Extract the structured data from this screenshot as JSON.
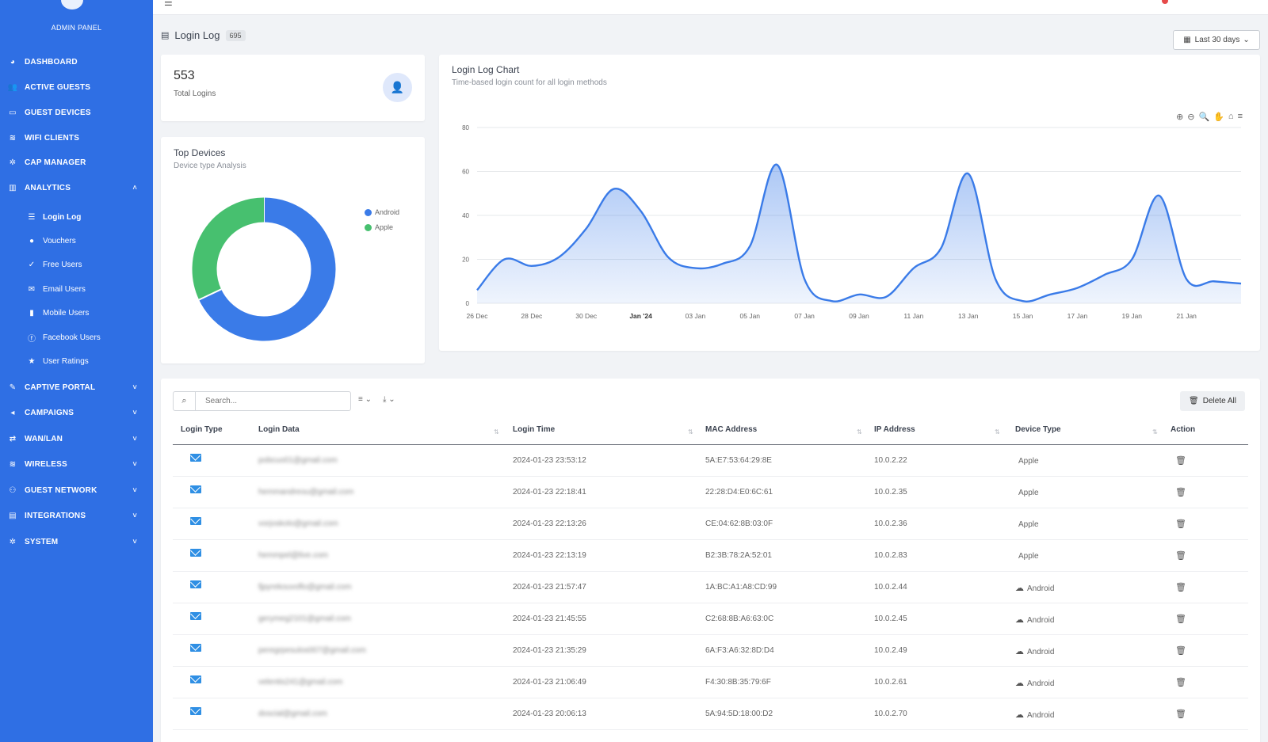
{
  "sidebar": {
    "panel_label": "ADMIN PANEL",
    "items": [
      {
        "label": "DASHBOARD",
        "icon": "dashboard-icon",
        "glyph": "◕"
      },
      {
        "label": "ACTIVE GUESTS",
        "icon": "users-icon",
        "glyph": "👥"
      },
      {
        "label": "GUEST DEVICES",
        "icon": "laptop-icon",
        "glyph": "▭"
      },
      {
        "label": "WIFI CLIENTS",
        "icon": "wifi-icon",
        "glyph": "≋"
      },
      {
        "label": "CAP MANAGER",
        "icon": "gear-icon",
        "glyph": "✲"
      },
      {
        "label": "ANALYTICS",
        "icon": "chart-icon",
        "glyph": "▥",
        "chevron": "˄"
      }
    ],
    "analytics_sub": [
      {
        "label": "Login Log",
        "icon": "list-icon",
        "glyph": "☰"
      },
      {
        "label": "Vouchers",
        "icon": "user-icon",
        "glyph": "●"
      },
      {
        "label": "Free Users",
        "icon": "check-icon",
        "glyph": "✓"
      },
      {
        "label": "Email Users",
        "icon": "email-icon",
        "glyph": "✉"
      },
      {
        "label": "Mobile Users",
        "icon": "mobile-icon",
        "glyph": "▮"
      },
      {
        "label": "Facebook Users",
        "icon": "facebook-icon",
        "glyph": "ⓕ"
      },
      {
        "label": "User Ratings",
        "icon": "star-icon",
        "glyph": "★"
      }
    ],
    "lower_items": [
      {
        "label": "CAPTIVE PORTAL",
        "icon": "edit-icon",
        "glyph": "✎",
        "chevron": "˅"
      },
      {
        "label": "CAMPAIGNS",
        "icon": "megaphone-icon",
        "glyph": "◂",
        "chevron": "˅"
      },
      {
        "label": "WAN/LAN",
        "icon": "exchange-icon",
        "glyph": "⇄",
        "chevron": "˅"
      },
      {
        "label": "WIRELESS",
        "icon": "wireless-icon",
        "glyph": "≋",
        "chevron": "˅"
      },
      {
        "label": "GUEST NETWORK",
        "icon": "user-network-icon",
        "glyph": "⚇",
        "chevron": "˅"
      },
      {
        "label": "INTEGRATIONS",
        "icon": "integrations-icon",
        "glyph": "▤",
        "chevron": "˅"
      },
      {
        "label": "SYSTEM",
        "icon": "system-gear-icon",
        "glyph": "✲",
        "chevron": "˅"
      }
    ]
  },
  "header": {
    "title": "Login Log",
    "count_badge": "695",
    "range_label": "Last 30 days",
    "range_chevron": "⌄",
    "calendar_glyph": "▦",
    "list_glyph": "▤"
  },
  "stats": {
    "total_value": "553",
    "total_label": "Total Logins",
    "icon_glyph": "👤"
  },
  "devices_card": {
    "title": "Top Devices",
    "subtitle": "Device type Analysis",
    "legend": [
      {
        "name": "Android",
        "color": "#3a7be8",
        "value": 68
      },
      {
        "name": "Apple",
        "color": "#47c06f",
        "value": 32
      }
    ]
  },
  "chart_card": {
    "title": "Login Log Chart",
    "subtitle": "Time-based login count for all login methods",
    "toolbar": [
      {
        "name": "zoom-in-icon",
        "glyph": "⊕"
      },
      {
        "name": "zoom-out-icon",
        "glyph": "⊖"
      },
      {
        "name": "magnify-icon",
        "glyph": "🔍"
      },
      {
        "name": "pan-hand-icon",
        "glyph": "✋"
      },
      {
        "name": "home-icon",
        "glyph": "⌂"
      },
      {
        "name": "menu-icon",
        "glyph": "≡"
      }
    ]
  },
  "chart_data": {
    "type": "area",
    "title": "Login Log Chart",
    "subtitle": "Time-based login count for all login methods",
    "x": [
      "2023-12-26",
      "2023-12-27",
      "2023-12-28",
      "2023-12-29",
      "2023-12-30",
      "2023-12-31",
      "2024-01-01",
      "2024-01-02",
      "2024-01-03",
      "2024-01-04",
      "2024-01-05",
      "2024-01-06",
      "2024-01-07",
      "2024-01-08",
      "2024-01-09",
      "2024-01-10",
      "2024-01-11",
      "2024-01-12",
      "2024-01-13",
      "2024-01-14",
      "2024-01-15",
      "2024-01-16",
      "2024-01-17",
      "2024-01-18",
      "2024-01-19",
      "2024-01-20",
      "2024-01-21",
      "2024-01-22",
      "2024-01-23"
    ],
    "values": [
      6,
      20,
      17,
      21,
      34,
      52,
      42,
      21,
      16,
      18,
      26,
      63,
      11,
      1,
      4,
      3,
      16,
      25,
      59,
      11,
      1,
      4,
      7,
      13,
      20,
      49,
      11,
      10,
      9
    ],
    "ylim": [
      0,
      80
    ],
    "yticks": [
      "0",
      "20",
      "40",
      "60",
      "80"
    ],
    "xticks": [
      {
        "x": "2023-12-26",
        "label": "26 Dec"
      },
      {
        "x": "2023-12-28",
        "label": "28 Dec"
      },
      {
        "x": "2023-12-30",
        "label": "30 Dec"
      },
      {
        "x": "2024-01-01",
        "label": "Jan '24"
      },
      {
        "x": "2024-01-03",
        "label": "03 Jan"
      },
      {
        "x": "2024-01-05",
        "label": "05 Jan"
      },
      {
        "x": "2024-01-07",
        "label": "07 Jan"
      },
      {
        "x": "2024-01-09",
        "label": "09 Jan"
      },
      {
        "x": "2024-01-11",
        "label": "11 Jan"
      },
      {
        "x": "2024-01-13",
        "label": "13 Jan"
      },
      {
        "x": "2024-01-15",
        "label": "15 Jan"
      },
      {
        "x": "2024-01-17",
        "label": "17 Jan"
      },
      {
        "x": "2024-01-19",
        "label": "19 Jan"
      },
      {
        "x": "2024-01-21",
        "label": "21 Jan"
      }
    ],
    "grid": true,
    "color": "#3a7be8"
  },
  "table": {
    "search_placeholder": "Search...",
    "columns_glyph": "≡ ⌄",
    "export_glyph": "⤓ ⌄",
    "delete_all_label": "Delete All",
    "delete_glyph": "🗑",
    "sort_glyph": "⇅",
    "headers": [
      "Login Type",
      "Login Data",
      "Login Time",
      "MAC Address",
      "IP Address",
      "Device Type",
      "Action"
    ],
    "rows": [
      {
        "data": "pobcuo01@gmail.com",
        "time": "2024-01-23 23:53:12",
        "mac": "5A:E7:53:64:29:8E",
        "ip": "10.0.2.22",
        "device": "Apple"
      },
      {
        "data": "hemmandreou@gmail.com",
        "time": "2024-01-23 22:18:41",
        "mac": "22:28:D4:E0:6C:61",
        "ip": "10.0.2.35",
        "device": "Apple"
      },
      {
        "data": "vorjoskolo@gmail.com",
        "time": "2024-01-23 22:13:26",
        "mac": "CE:04:62:8B:03:0F",
        "ip": "10.0.2.36",
        "device": "Apple"
      },
      {
        "data": "hemmpel@live.com",
        "time": "2024-01-23 22:13:19",
        "mac": "B2:3B:78:2A:52:01",
        "ip": "10.0.2.83",
        "device": "Apple"
      },
      {
        "data": "fjpyrekouvoflo@gmail.com",
        "time": "2024-01-23 21:57:47",
        "mac": "1A:BC:A1:A8:CD:99",
        "ip": "10.0.2.44",
        "device": "Android"
      },
      {
        "data": "gerymeg2101@gmail.com",
        "time": "2024-01-23 21:45:55",
        "mac": "C2:68:8B:A6:63:0C",
        "ip": "10.0.2.45",
        "device": "Android"
      },
      {
        "data": "peregrpesulos007@gmail.com",
        "time": "2024-01-23 21:35:29",
        "mac": "6A:F3:A6:32:8D:D4",
        "ip": "10.0.2.49",
        "device": "Android"
      },
      {
        "data": "velentis241@gmail.com",
        "time": "2024-01-23 21:06:49",
        "mac": "F4:30:8B:35:79:6F",
        "ip": "10.0.2.61",
        "device": "Android"
      },
      {
        "data": "doscial@gmail.com",
        "time": "2024-01-23 20:06:13",
        "mac": "5A:94:5D:18:00:D2",
        "ip": "10.0.2.70",
        "device": "Android"
      }
    ],
    "device_glyphs": {
      "Apple": "",
      "Android": "☁"
    }
  }
}
